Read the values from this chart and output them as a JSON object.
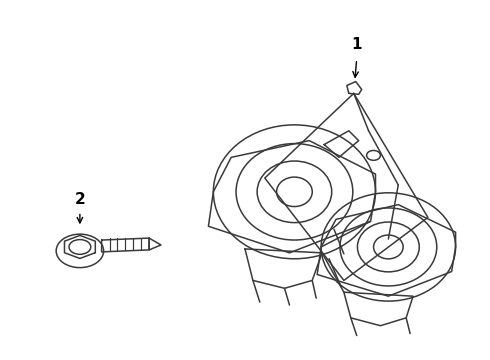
{
  "background_color": "#ffffff",
  "line_color": "#3a3a3a",
  "label_1_text": "1",
  "label_2_text": "2",
  "figsize": [
    4.9,
    3.6
  ],
  "dpi": 100
}
